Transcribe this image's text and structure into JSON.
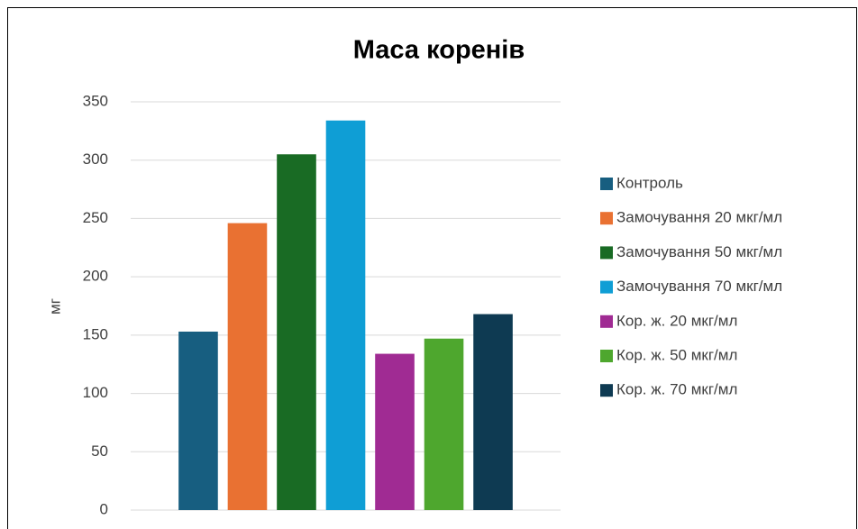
{
  "chart_data": {
    "type": "bar",
    "title": "Маса коренів",
    "ylabel": "мг",
    "categories": [
      null
    ],
    "series": [
      {
        "name": "Контроль",
        "color": "#175e80",
        "values": [
          153
        ]
      },
      {
        "name": "Замочування 20 мкг/мл",
        "color": "#e97132",
        "values": [
          246
        ]
      },
      {
        "name": "Замочування 50 мкг/мл",
        "color": "#196b24",
        "values": [
          305
        ]
      },
      {
        "name": "Замочування 70 мкг/мл",
        "color": "#0f9ed5",
        "values": [
          334
        ]
      },
      {
        "name": "Кор. ж. 20 мкг/мл",
        "color": "#a02b93",
        "values": [
          134
        ]
      },
      {
        "name": "Кор. ж. 50 мкг/мл",
        "color": "#4ea72e",
        "values": [
          147
        ]
      },
      {
        "name": "Кор. ж. 70 мкг/мл",
        "color": "#0e3a52",
        "values": [
          168
        ]
      }
    ],
    "ylim": [
      0,
      350
    ],
    "yticks": [
      0,
      50,
      100,
      150,
      200,
      250,
      300,
      350
    ],
    "grid": true,
    "legend": "right"
  }
}
